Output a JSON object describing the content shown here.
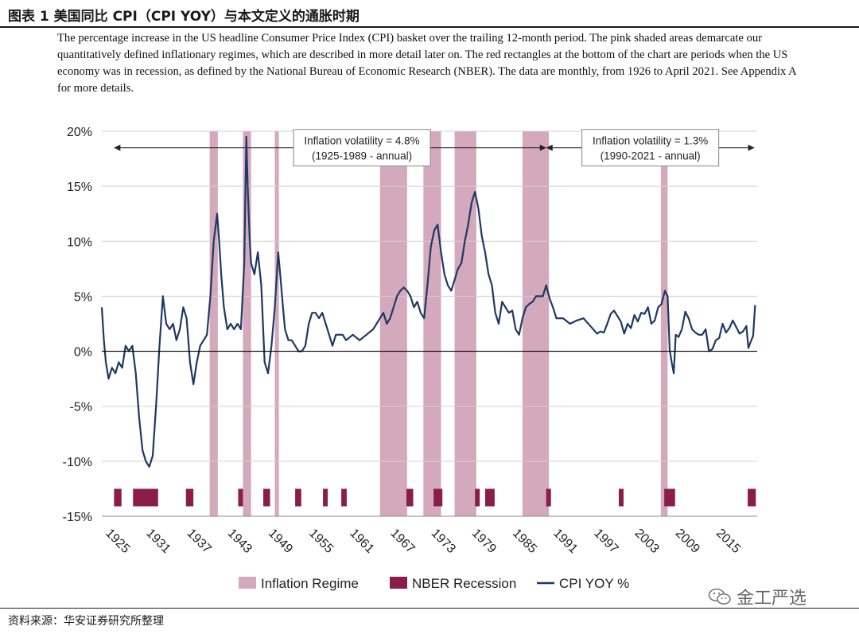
{
  "figure": {
    "title": "图表 1 美国同比 CPI（CPI YOY）与本文定义的通胀时期",
    "description": "The percentage increase in the US headline Consumer Price Index (CPI) basket over the trailing 12-month period. The pink shaded areas demarcate our quantitatively defined inflationary regimes, which are described in more detail later on. The red rectangles at the bottom of the chart are periods when the US economy was in recession, as defined by the National Bureau of Economic Research (NBER). The data are monthly, from 1926 to April 2021. See Appendix A for more details.",
    "source": "资料来源：华安证券研究所整理",
    "watermark": "金工严选"
  },
  "colors": {
    "line": "#1f3864",
    "regime": "#d4a9bc",
    "recession": "#8b1d4a",
    "grid": "#d0d0d0",
    "axis": "#000000"
  },
  "chart_data": {
    "type": "line",
    "ylabel": "",
    "xlabel": "",
    "ylim": [
      -15,
      20
    ],
    "xlim": [
      1925,
      2021.6
    ],
    "y_ticks": [
      "20%",
      "15%",
      "10%",
      "5%",
      "0%",
      "-5%",
      "-10%",
      "-15%"
    ],
    "y_tick_values": [
      20,
      15,
      10,
      5,
      0,
      -5,
      -10,
      -15
    ],
    "x_ticks": [
      "1925",
      "1931",
      "1937",
      "1943",
      "1949",
      "1955",
      "1961",
      "1967",
      "1973",
      "1979",
      "1985",
      "1991",
      "1997",
      "2003",
      "2009",
      "2015"
    ],
    "x_tick_values": [
      1925,
      1931,
      1937,
      1943,
      1949,
      1955,
      1961,
      1967,
      1973,
      1979,
      1985,
      1991,
      1997,
      2003,
      2009,
      2015
    ],
    "grid": true,
    "legend": {
      "position": "bottom-center",
      "entries": [
        "Inflation Regime",
        "NBER Recession",
        "CPI YOY %"
      ]
    },
    "annotations": [
      {
        "text_line1": "Inflation volatility = 4.8%",
        "text_line2": "(1925-1989 - annual)",
        "x_start": 1926.8,
        "x_end": 1990.5,
        "y": 18.5
      },
      {
        "text_line1": "Inflation volatility = 1.3%",
        "text_line2": "(1990-2021 - annual)",
        "x_start": 1990.5,
        "x_end": 2021.2,
        "y": 18.5
      }
    ],
    "inflation_regimes": [
      [
        1940.9,
        1942.1
      ],
      [
        1945.8,
        1947.0
      ],
      [
        1950.5,
        1951.1
      ],
      [
        1966.0,
        1970.0
      ],
      [
        1972.4,
        1975.0
      ],
      [
        1977.0,
        1980.2
      ],
      [
        1987.0,
        1990.9
      ],
      [
        2007.4,
        2008.4
      ]
    ],
    "recessions": [
      [
        1926.8,
        1927.9
      ],
      [
        1929.6,
        1933.3
      ],
      [
        1937.4,
        1938.5
      ],
      [
        1945.1,
        1945.8
      ],
      [
        1948.8,
        1949.8
      ],
      [
        1953.5,
        1954.4
      ],
      [
        1957.6,
        1958.3
      ],
      [
        1960.3,
        1961.1
      ],
      [
        1969.9,
        1970.9
      ],
      [
        1973.9,
        1975.2
      ],
      [
        1980.0,
        1980.6
      ],
      [
        1981.5,
        1982.9
      ],
      [
        1990.5,
        1991.2
      ],
      [
        2001.2,
        2001.9
      ],
      [
        2007.9,
        2009.5
      ],
      [
        2020.2,
        2021.4
      ]
    ],
    "series": [
      {
        "name": "CPI YOY %",
        "x": [
          1925.0,
          1925.3,
          1925.6,
          1926.0,
          1926.5,
          1927.0,
          1927.5,
          1928.0,
          1928.5,
          1929.0,
          1929.5,
          1930.0,
          1930.5,
          1931.0,
          1931.5,
          1932.0,
          1932.5,
          1933.0,
          1933.5,
          1934.0,
          1934.5,
          1935.0,
          1935.5,
          1936.0,
          1936.5,
          1937.0,
          1937.5,
          1938.0,
          1938.5,
          1939.0,
          1939.5,
          1940.0,
          1940.5,
          1941.0,
          1941.5,
          1942.0,
          1942.3,
          1942.6,
          1943.0,
          1943.5,
          1944.0,
          1944.5,
          1945.0,
          1945.5,
          1946.0,
          1946.3,
          1946.5,
          1946.8,
          1947.0,
          1947.5,
          1948.0,
          1948.5,
          1949.0,
          1949.5,
          1950.0,
          1950.5,
          1951.0,
          1951.3,
          1951.7,
          1952.0,
          1952.5,
          1953.0,
          1953.5,
          1954.0,
          1954.5,
          1955.0,
          1955.5,
          1956.0,
          1956.5,
          1957.0,
          1957.5,
          1958.0,
          1958.5,
          1959.0,
          1959.5,
          1960.0,
          1960.5,
          1961.0,
          1962.0,
          1963.0,
          1964.0,
          1965.0,
          1966.0,
          1966.5,
          1967.0,
          1967.5,
          1968.0,
          1968.5,
          1969.0,
          1969.5,
          1970.0,
          1970.5,
          1971.0,
          1971.5,
          1972.0,
          1972.5,
          1973.0,
          1973.5,
          1974.0,
          1974.5,
          1975.0,
          1975.5,
          1976.0,
          1976.5,
          1977.0,
          1977.5,
          1978.0,
          1978.5,
          1979.0,
          1979.5,
          1980.0,
          1980.5,
          1981.0,
          1981.5,
          1982.0,
          1982.5,
          1983.0,
          1983.5,
          1984.0,
          1984.5,
          1985.0,
          1985.5,
          1986.0,
          1986.5,
          1987.0,
          1987.5,
          1988.0,
          1988.5,
          1989.0,
          1989.5,
          1990.0,
          1990.5,
          1991.0,
          1991.5,
          1992.0,
          1992.5,
          1993.0,
          1994.0,
          1995.0,
          1996.0,
          1997.0,
          1998.0,
          1998.5,
          1999.0,
          1999.5,
          2000.0,
          2000.5,
          2001.0,
          2001.5,
          2002.0,
          2002.5,
          2003.0,
          2003.5,
          2004.0,
          2004.5,
          2005.0,
          2005.5,
          2006.0,
          2006.5,
          2007.0,
          2007.5,
          2008.0,
          2008.4,
          2008.7,
          2009.0,
          2009.3,
          2009.6,
          2010.0,
          2010.5,
          2011.0,
          2011.5,
          2012.0,
          2012.5,
          2013.0,
          2013.5,
          2014.0,
          2014.5,
          2015.0,
          2015.5,
          2016.0,
          2016.5,
          2017.0,
          2017.5,
          2018.0,
          2018.5,
          2019.0,
          2019.5,
          2020.0,
          2020.3,
          2020.6,
          2021.0,
          2021.3
        ],
        "values": [
          4.0,
          1.0,
          -1.0,
          -2.5,
          -1.5,
          -2.0,
          -1.0,
          -1.5,
          0.5,
          0.0,
          0.5,
          -2.0,
          -6.0,
          -9.0,
          -10.0,
          -10.5,
          -9.5,
          -5.0,
          0.5,
          5.0,
          2.5,
          2.0,
          2.5,
          1.0,
          2.0,
          4.0,
          3.0,
          -1.0,
          -3.0,
          -1.0,
          0.5,
          1.0,
          1.5,
          5.0,
          10.0,
          12.5,
          10.0,
          7.0,
          4.0,
          2.0,
          2.5,
          2.0,
          2.5,
          2.0,
          8.0,
          19.5,
          15.0,
          10.0,
          8.0,
          7.0,
          9.0,
          6.0,
          -1.0,
          -2.0,
          0.5,
          4.0,
          9.0,
          7.0,
          4.0,
          2.0,
          1.0,
          1.0,
          0.5,
          0.0,
          0.0,
          0.5,
          2.5,
          3.5,
          3.5,
          3.0,
          3.5,
          2.5,
          1.5,
          0.5,
          1.5,
          1.5,
          1.5,
          1.0,
          1.5,
          1.0,
          1.5,
          2.0,
          3.0,
          3.5,
          2.5,
          3.0,
          4.0,
          5.0,
          5.5,
          5.8,
          5.5,
          5.0,
          4.0,
          4.5,
          3.5,
          3.0,
          6.0,
          9.5,
          11.0,
          11.5,
          9.0,
          7.0,
          6.0,
          5.5,
          6.5,
          7.5,
          8.0,
          10.0,
          11.5,
          13.5,
          14.5,
          13.0,
          10.5,
          9.0,
          7.0,
          6.0,
          3.5,
          2.5,
          4.5,
          4.0,
          3.5,
          3.7,
          2.0,
          1.5,
          3.0,
          4.0,
          4.3,
          4.5,
          5.0,
          5.0,
          5.0,
          6.0,
          4.8,
          4.0,
          3.0,
          3.0,
          3.0,
          2.5,
          2.8,
          3.0,
          2.3,
          1.6,
          1.8,
          1.7,
          2.5,
          3.4,
          3.7,
          3.2,
          2.7,
          1.6,
          2.5,
          2.1,
          3.3,
          2.7,
          3.5,
          3.4,
          4.0,
          2.5,
          2.8,
          4.0,
          4.3,
          5.5,
          5.0,
          0.1,
          -1.0,
          -2.0,
          1.5,
          1.3,
          2.0,
          3.6,
          3.0,
          2.0,
          1.7,
          1.5,
          1.5,
          2.0,
          0.0,
          0.2,
          1.0,
          1.2,
          2.5,
          1.7,
          2.1,
          2.8,
          2.2,
          1.6,
          1.8,
          2.3,
          0.3,
          0.8,
          1.4,
          4.2
        ]
      }
    ]
  }
}
